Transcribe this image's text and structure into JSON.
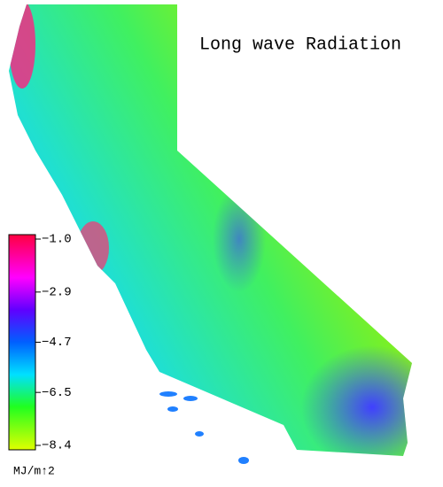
{
  "title": "Long wave Radiation",
  "colorbar": {
    "lim": [
      -8.4,
      -1.0
    ],
    "ticks": [
      {
        "value": -1.0,
        "label": "−1.0"
      },
      {
        "value": -2.9,
        "label": "−2.9"
      },
      {
        "value": -4.7,
        "label": "−4.7"
      },
      {
        "value": -6.5,
        "label": "−6.5"
      },
      {
        "value": -8.4,
        "label": "−8.4"
      }
    ],
    "unit": "MJ/m↑2"
  }
}
